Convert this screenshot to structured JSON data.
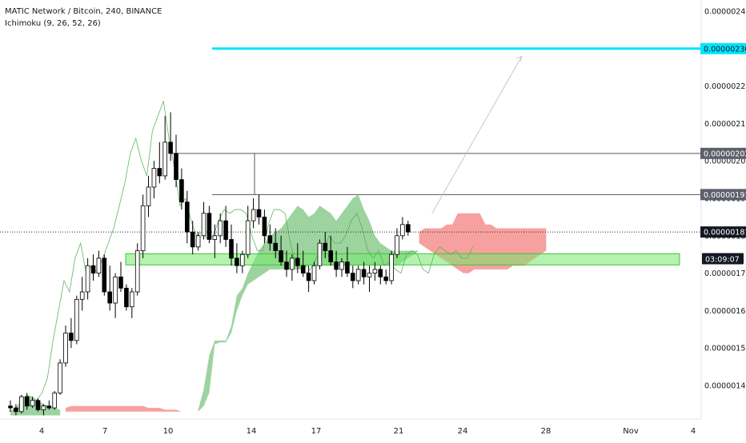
{
  "header": {
    "title": "MATIC Network / Bitcoin, 240, BINANCE",
    "indicator": "Ichimoku (9, 26, 52, 26)"
  },
  "colors": {
    "up": "#ffffff",
    "down": "#000000",
    "wick": "#000000",
    "kumo_bull": "#4caf50",
    "kumo_bear": "#ef5350",
    "lagging": "#4caf50",
    "support_zone": "#76e86a",
    "target_line": "#00e5ff",
    "grid_text": "#131722"
  },
  "chart_data": {
    "type": "candlestick",
    "symbol": "MATIC Network / Bitcoin",
    "interval": "240",
    "exchange": "BINANCE",
    "indicator": "Ichimoku (9, 26, 52, 26)",
    "ylim": [
      1.3e-06,
      2.45e-06
    ],
    "y_ticks": [
      "0.00000140",
      "0.00000150",
      "0.00000160",
      "0.00000170",
      "0.00000180",
      "0.00000190",
      "0.00000200",
      "0.00000210",
      "0.00000220",
      "0.00000230",
      "0.00000240"
    ],
    "x_ticks": [
      "4",
      "7",
      "10",
      "14",
      "17",
      "21",
      "24",
      "28",
      "Nov",
      "4"
    ],
    "price_labels": [
      {
        "text": "0.00000230",
        "value": 2.3e-06,
        "style": "target"
      },
      {
        "text": "0.00000202",
        "value": 2.02e-06,
        "style": "level"
      },
      {
        "text": "0.00000191",
        "value": 1.91e-06,
        "style": "level"
      },
      {
        "text": "0.00000181",
        "value": 1.81e-06,
        "style": "last"
      },
      {
        "text": "03:09:07",
        "value": 1.775e-06,
        "style": "countdown"
      }
    ],
    "candles": [
      [
        1.345,
        1.36,
        1.33,
        1.34
      ],
      [
        1.34,
        1.35,
        1.32,
        1.33
      ],
      [
        1.33,
        1.375,
        1.325,
        1.37
      ],
      [
        1.37,
        1.38,
        1.335,
        1.345
      ],
      [
        1.345,
        1.37,
        1.34,
        1.36
      ],
      [
        1.36,
        1.365,
        1.33,
        1.335
      ],
      [
        1.335,
        1.35,
        1.32,
        1.345
      ],
      [
        1.345,
        1.36,
        1.335,
        1.34
      ],
      [
        1.34,
        1.385,
        1.335,
        1.38
      ],
      [
        1.38,
        1.47,
        1.375,
        1.46
      ],
      [
        1.46,
        1.56,
        1.45,
        1.54
      ],
      [
        1.54,
        1.58,
        1.5,
        1.52
      ],
      [
        1.52,
        1.64,
        1.51,
        1.63
      ],
      [
        1.63,
        1.69,
        1.6,
        1.65
      ],
      [
        1.65,
        1.74,
        1.63,
        1.72
      ],
      [
        1.72,
        1.75,
        1.68,
        1.7
      ],
      [
        1.7,
        1.76,
        1.69,
        1.74
      ],
      [
        1.74,
        1.75,
        1.64,
        1.65
      ],
      [
        1.65,
        1.72,
        1.6,
        1.62
      ],
      [
        1.62,
        1.7,
        1.58,
        1.69
      ],
      [
        1.69,
        1.73,
        1.65,
        1.66
      ],
      [
        1.66,
        1.67,
        1.6,
        1.61
      ],
      [
        1.61,
        1.66,
        1.58,
        1.65
      ],
      [
        1.65,
        1.78,
        1.64,
        1.76
      ],
      [
        1.76,
        1.91,
        1.74,
        1.88
      ],
      [
        1.88,
        1.96,
        1.85,
        1.93
      ],
      [
        1.93,
        2.0,
        1.9,
        1.98
      ],
      [
        1.98,
        2.05,
        1.94,
        1.96
      ],
      [
        1.96,
        2.12,
        1.95,
        2.05
      ],
      [
        2.05,
        2.13,
        2.0,
        2.02
      ],
      [
        2.02,
        2.07,
        1.93,
        1.95
      ],
      [
        1.95,
        1.98,
        1.87,
        1.89
      ],
      [
        1.89,
        1.92,
        1.78,
        1.81
      ],
      [
        1.81,
        1.84,
        1.75,
        1.77
      ],
      [
        1.77,
        1.81,
        1.76,
        1.8
      ],
      [
        1.8,
        1.89,
        1.79,
        1.86
      ],
      [
        1.86,
        1.88,
        1.78,
        1.79
      ],
      [
        1.79,
        1.83,
        1.74,
        1.8
      ],
      [
        1.8,
        1.86,
        1.78,
        1.84
      ],
      [
        1.84,
        1.88,
        1.77,
        1.79
      ],
      [
        1.79,
        1.83,
        1.72,
        1.74
      ],
      [
        1.74,
        1.78,
        1.7,
        1.72
      ],
      [
        1.72,
        1.76,
        1.7,
        1.75
      ],
      [
        1.75,
        1.88,
        1.74,
        1.84
      ],
      [
        1.84,
        1.9,
        1.82,
        1.87
      ],
      [
        1.87,
        1.91,
        1.83,
        1.85
      ],
      [
        1.85,
        1.87,
        1.78,
        1.8
      ],
      [
        1.8,
        1.83,
        1.76,
        1.78
      ],
      [
        1.78,
        1.82,
        1.74,
        1.76
      ],
      [
        1.76,
        1.8,
        1.72,
        1.73
      ],
      [
        1.73,
        1.76,
        1.69,
        1.71
      ],
      [
        1.71,
        1.75,
        1.68,
        1.74
      ],
      [
        1.74,
        1.78,
        1.7,
        1.72
      ],
      [
        1.72,
        1.76,
        1.69,
        1.7
      ],
      [
        1.7,
        1.72,
        1.65,
        1.68
      ],
      [
        1.68,
        1.73,
        1.67,
        1.72
      ],
      [
        1.72,
        1.79,
        1.71,
        1.78
      ],
      [
        1.78,
        1.81,
        1.74,
        1.76
      ],
      [
        1.76,
        1.8,
        1.72,
        1.73
      ],
      [
        1.73,
        1.76,
        1.69,
        1.71
      ],
      [
        1.71,
        1.74,
        1.69,
        1.73
      ],
      [
        1.73,
        1.77,
        1.69,
        1.7
      ],
      [
        1.7,
        1.72,
        1.66,
        1.68
      ],
      [
        1.68,
        1.72,
        1.67,
        1.71
      ],
      [
        1.71,
        1.73,
        1.67,
        1.69
      ],
      [
        1.69,
        1.72,
        1.65,
        1.7
      ],
      [
        1.7,
        1.73,
        1.68,
        1.71
      ],
      [
        1.71,
        1.72,
        1.67,
        1.69
      ],
      [
        1.69,
        1.71,
        1.67,
        1.68
      ],
      [
        1.68,
        1.76,
        1.67,
        1.75
      ],
      [
        1.75,
        1.82,
        1.74,
        1.8
      ],
      [
        1.8,
        1.85,
        1.79,
        1.83
      ],
      [
        1.83,
        1.84,
        1.8,
        1.81
      ]
    ],
    "levels": [
      {
        "value": 2.3e-06,
        "label": "0.00000230",
        "kind": "target"
      },
      {
        "value": 2.02e-06,
        "label": "0.00000202",
        "kind": "horizontal"
      },
      {
        "value": 1.91e-06,
        "label": "0.00000191",
        "kind": "horizontal"
      },
      {
        "value": 1.81e-06,
        "label": "0.00000181",
        "kind": "last_price"
      }
    ],
    "support_zone": {
      "low": 1.722e-06,
      "high": 1.752e-06
    },
    "kumo": [
      {
        "top": [
          1.33,
          1.34,
          1.365,
          1.375,
          1.37,
          1.36,
          1.35,
          1.345,
          1.34,
          1.335
        ],
        "bot": [
          1.32,
          1.32,
          1.32,
          1.32,
          1.32,
          1.32,
          1.32,
          1.32,
          1.32,
          1.32
        ],
        "color": "bull",
        "x_from": 0,
        "x_to": 9
      },
      {
        "top": [
          1.34,
          1.345,
          1.345,
          1.345,
          1.345,
          1.345,
          1.345,
          1.345,
          1.345,
          1.345,
          1.345,
          1.345,
          1.345,
          1.345,
          1.345,
          1.34,
          1.34,
          1.34,
          1.335,
          1.335,
          1.335,
          1.33,
          1.33,
          1.33,
          1.33
        ],
        "bot": [
          1.33,
          1.33,
          1.33,
          1.33,
          1.33,
          1.33,
          1.33,
          1.33,
          1.33,
          1.33,
          1.33,
          1.33,
          1.33,
          1.33,
          1.33,
          1.33,
          1.33,
          1.33,
          1.33,
          1.33,
          1.33,
          1.33,
          1.33,
          1.33,
          1.33
        ],
        "color": "bear",
        "x_from": 10,
        "x_to": 34
      },
      {
        "top": [
          1.335,
          1.39,
          1.48,
          1.52,
          1.52,
          1.52,
          1.56,
          1.64,
          1.66,
          1.7,
          1.73,
          1.76,
          1.78,
          1.8,
          1.81,
          1.82,
          1.84,
          1.86,
          1.88,
          1.87,
          1.85,
          1.86,
          1.88,
          1.87,
          1.86,
          1.84,
          1.86,
          1.88,
          1.9,
          1.91,
          1.87,
          1.84,
          1.8,
          1.78,
          1.77,
          1.76,
          1.76,
          1.76,
          1.76,
          1.76,
          1.76
        ],
        "bot": [
          1.33,
          1.345,
          1.38,
          1.51,
          1.515,
          1.515,
          1.54,
          1.6,
          1.64,
          1.67,
          1.68,
          1.69,
          1.7,
          1.71,
          1.71,
          1.71,
          1.71,
          1.71,
          1.71,
          1.71,
          1.72,
          1.72,
          1.72,
          1.72,
          1.72,
          1.72,
          1.72,
          1.72,
          1.72,
          1.72,
          1.72,
          1.72,
          1.72,
          1.72,
          1.72,
          1.72,
          1.72,
          1.73,
          1.74,
          1.75,
          1.76
        ],
        "color": "bull",
        "x_from": 34,
        "x_to": 74
      },
      {
        "top": [
          1.81,
          1.82,
          1.82,
          1.82,
          1.82,
          1.83,
          1.83,
          1.86,
          1.86,
          1.86,
          1.86,
          1.86,
          1.83,
          1.83,
          1.82,
          1.82,
          1.82,
          1.82,
          1.82,
          1.82,
          1.82,
          1.82,
          1.82,
          1.82
        ],
        "bot": [
          1.78,
          1.77,
          1.76,
          1.75,
          1.74,
          1.73,
          1.72,
          1.71,
          1.7,
          1.7,
          1.71,
          1.71,
          1.71,
          1.71,
          1.71,
          1.71,
          1.71,
          1.72,
          1.72,
          1.72,
          1.73,
          1.74,
          1.75,
          1.76
        ],
        "color": "bear",
        "x_from": 74,
        "x_to": 97
      }
    ],
    "lagging_span": [
      1.33,
      1.335,
      1.34,
      1.345,
      1.35,
      1.36,
      1.38,
      1.42,
      1.52,
      1.6,
      1.68,
      1.65,
      1.74,
      1.78,
      1.7,
      1.72,
      1.7,
      1.74,
      1.78,
      1.82,
      1.88,
      1.94,
      2.02,
      2.06,
      2.0,
      1.96,
      2.08,
      2.12,
      2.16,
      2.06,
      1.98,
      1.88,
      1.9,
      1.84,
      1.8,
      1.81,
      1.79,
      1.8,
      1.84,
      1.87,
      1.86,
      1.87,
      1.87,
      1.86,
      1.8,
      1.76,
      1.76,
      1.83,
      1.87,
      1.87,
      1.86,
      1.78,
      1.72,
      1.71,
      1.7,
      1.72,
      1.75,
      1.76,
      1.8,
      1.78,
      1.78,
      1.8,
      1.84,
      1.86,
      1.82,
      1.76,
      1.74,
      1.76,
      1.72,
      1.73,
      1.71,
      1.7,
      1.75,
      1.76,
      1.75,
      1.71,
      1.7,
      1.75,
      1.77,
      1.76,
      1.75,
      1.76,
      1.74,
      1.74,
      1.77
    ],
    "projection": {
      "from_value": 1.81e-06,
      "to_value": 2.28e-06
    }
  }
}
